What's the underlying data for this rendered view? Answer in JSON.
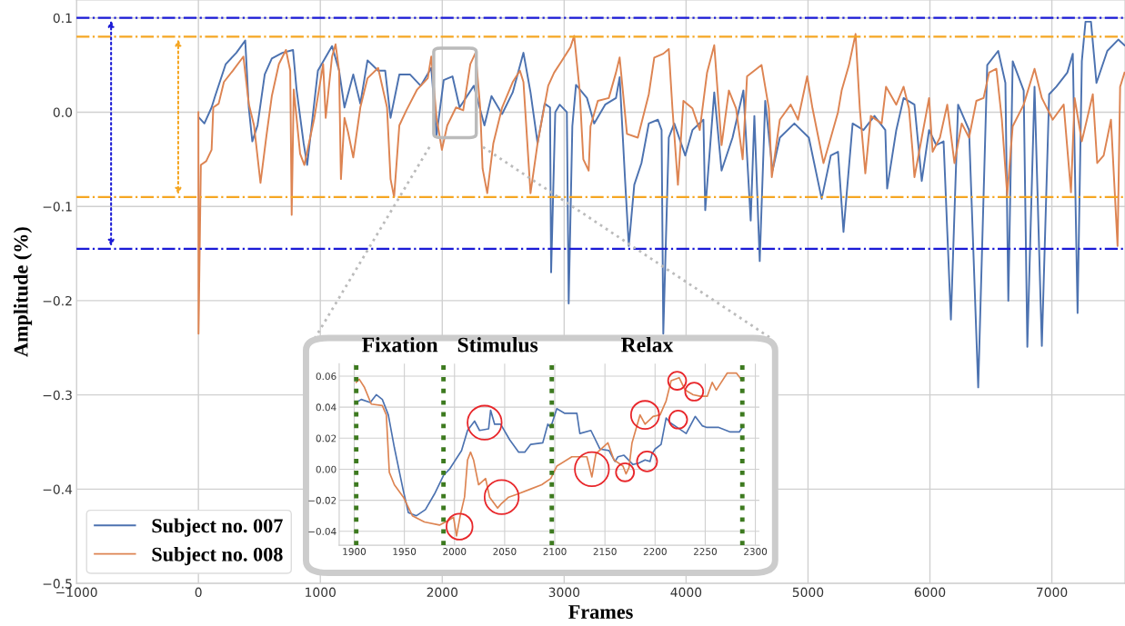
{
  "chart_data": [
    {
      "type": "line",
      "xlabel": "Frames",
      "ylabel": "Amplitude (%)",
      "xlim": [
        -1000,
        7600
      ],
      "ylim": [
        -0.5,
        0.119
      ],
      "xticks": [
        {
          "value": -1000,
          "label": "−1000"
        },
        0,
        1000,
        2000,
        3000,
        4000,
        5000,
        6000,
        7000
      ],
      "yticks": [
        {
          "value": -0.5,
          "label": "−0.5"
        },
        {
          "value": -0.4,
          "label": "−0.4"
        },
        {
          "value": -0.3,
          "label": "−0.3"
        },
        {
          "value": -0.2,
          "label": "−0.2"
        },
        {
          "value": -0.1,
          "label": "−0.1"
        },
        {
          "value": 0,
          "label": "0.0"
        },
        0.1
      ],
      "grid": true,
      "legend": "lower left",
      "line_style": "solid",
      "ref_lines": [
        {
          "axis": "y",
          "value": 0.1,
          "color": "#1a1ad6",
          "line_style": "dashdot"
        },
        {
          "axis": "y",
          "value": -0.145,
          "color": "#1a1ad6",
          "line_style": "dashdot"
        },
        {
          "axis": "y",
          "value": 0.08,
          "color": "#f5a623",
          "line_style": "dashdot"
        },
        {
          "axis": "y",
          "value": -0.09,
          "color": "#f5a623",
          "line_style": "dashdot"
        }
      ],
      "series": [
        {
          "name": "Subject no. 007",
          "color": "#4c72b0",
          "x": [
            6,
            49,
            108,
            137,
            224,
            311,
            384,
            413,
            442,
            485,
            544,
            602,
            689,
            776,
            805,
            863,
            892,
            980,
            1096,
            1154,
            1198,
            1270,
            1328,
            1387,
            1474,
            1532,
            1576,
            1648,
            1735,
            1823,
            1910,
            1953,
            2012,
            2084,
            2142,
            2259,
            2346,
            2404,
            2491,
            2578,
            2666,
            2724,
            2782,
            2840,
            2884,
            2893,
            2927,
            2963,
            3022,
            3037,
            3067,
            3097,
            3187,
            3246,
            3336,
            3425,
            3455,
            3500,
            3530,
            3575,
            3634,
            3694,
            3769,
            3799,
            3813,
            3858,
            3903,
            3993,
            4052,
            4142,
            4157,
            4231,
            4291,
            4381,
            4470,
            4530,
            4560,
            4604,
            4649,
            4709,
            4769,
            4888,
            5007,
            5112,
            5187,
            5246,
            5291,
            5366,
            5455,
            5545,
            5634,
            5649,
            5724,
            5784,
            5873,
            5933,
            5993,
            6052,
            6112,
            6172,
            6231,
            6321,
            6396,
            6470,
            6560,
            6619,
            6643,
            6679,
            6769,
            6799,
            6858,
            6918,
            6978,
            7037,
            7127,
            7172,
            7211,
            7246,
            7276,
            7321,
            7366,
            7455,
            7545,
            7596
          ],
          "values": [
            -0.006,
            -0.012,
            0.005,
            0.017,
            0.051,
            0.063,
            0.076,
            0.005,
            -0.031,
            -0.014,
            0.04,
            0.057,
            0.063,
            0.066,
            0.024,
            -0.033,
            -0.056,
            0.044,
            0.07,
            0.044,
            0.005,
            0.04,
            0.009,
            0.055,
            0.044,
            0.044,
            -0.006,
            0.04,
            0.04,
            0.028,
            0.047,
            -0.025,
            0.034,
            0.038,
            0.005,
            0.028,
            -0.014,
            0.017,
            -0.002,
            0.021,
            0.063,
            0.021,
            -0.033,
            0.009,
            0.005,
            -0.17,
            0.0,
            0.008,
            0.0,
            -0.203,
            -0.015,
            0.029,
            0.015,
            -0.012,
            0.008,
            0.015,
            0.037,
            -0.073,
            -0.142,
            -0.077,
            -0.054,
            -0.012,
            -0.008,
            -0.019,
            -0.235,
            -0.027,
            -0.012,
            -0.046,
            -0.019,
            -0.008,
            -0.104,
            0.021,
            -0.062,
            -0.027,
            0.023,
            -0.115,
            -0.004,
            -0.158,
            0.012,
            -0.062,
            -0.027,
            -0.012,
            -0.027,
            -0.092,
            -0.046,
            -0.042,
            -0.127,
            -0.012,
            -0.019,
            -0.004,
            -0.019,
            -0.081,
            -0.019,
            0.015,
            0.008,
            -0.073,
            -0.019,
            -0.035,
            -0.031,
            -0.22,
            0.008,
            -0.019,
            -0.292,
            0.05,
            0.065,
            0.031,
            -0.2,
            0.054,
            0.023,
            -0.249,
            0.027,
            -0.248,
            0.019,
            0.027,
            0.042,
            0.062,
            -0.213,
            0.054,
            0.096,
            0.096,
            0.031,
            0.065,
            0.077,
            0.071
          ]
        },
        {
          "name": "Subject no. 008",
          "color": "#dd8452",
          "x": [
            0,
            1,
            20,
            64,
            108,
            122,
            166,
            209,
            282,
            369,
            413,
            456,
            509,
            558,
            602,
            660,
            718,
            753,
            765,
            782,
            834,
            869,
            951,
            1023,
            1044,
            1096,
            1125,
            1154,
            1169,
            1198,
            1227,
            1270,
            1328,
            1387,
            1474,
            1547,
            1576,
            1605,
            1648,
            1706,
            1794,
            1881,
            1910,
            1953,
            1997,
            2041,
            2113,
            2172,
            2230,
            2273,
            2311,
            2331,
            2369,
            2419,
            2491,
            2578,
            2637,
            2666,
            2724,
            2782,
            2869,
            2918,
            2978,
            3052,
            3082,
            3127,
            3157,
            3201,
            3216,
            3276,
            3366,
            3425,
            3455,
            3515,
            3604,
            3694,
            3739,
            3813,
            3858,
            3888,
            3933,
            3978,
            4052,
            4112,
            4172,
            4231,
            4291,
            4351,
            4410,
            4464,
            4500,
            4619,
            4679,
            4703,
            4769,
            4858,
            4918,
            4993,
            5037,
            5127,
            5187,
            5246,
            5276,
            5336,
            5390,
            5425,
            5470,
            5515,
            5604,
            5640,
            5724,
            5784,
            5828,
            5858,
            5873,
            5933,
            5993,
            6022,
            6082,
            6142,
            6201,
            6261,
            6321,
            6381,
            6440,
            6485,
            6545,
            6590,
            6634,
            6679,
            6769,
            6858,
            6918,
            7007,
            7097,
            7157,
            7187,
            7246,
            7336,
            7372,
            7425,
            7485,
            7539,
            7560,
            7596
          ],
          "values": [
            0.0,
            -0.235,
            -0.056,
            -0.052,
            -0.04,
            0.005,
            0.009,
            0.032,
            0.044,
            0.059,
            0.009,
            -0.014,
            -0.075,
            -0.025,
            0.017,
            0.051,
            0.066,
            0.044,
            -0.109,
            0.024,
            -0.044,
            -0.056,
            -0.006,
            0.051,
            -0.006,
            0.059,
            0.072,
            0.044,
            -0.071,
            -0.006,
            -0.021,
            -0.048,
            0.005,
            0.036,
            0.047,
            0.005,
            -0.071,
            -0.09,
            -0.014,
            0.002,
            0.024,
            0.036,
            0.059,
            -0.006,
            -0.04,
            -0.014,
            0.005,
            0.002,
            0.051,
            0.063,
            0.005,
            -0.06,
            -0.086,
            -0.033,
            0.005,
            0.032,
            0.044,
            0.032,
            -0.086,
            -0.033,
            0.028,
            0.042,
            0.054,
            0.069,
            0.081,
            0.023,
            -0.05,
            -0.062,
            -0.015,
            0.012,
            0.015,
            0.042,
            0.058,
            -0.023,
            -0.027,
            0.019,
            0.058,
            0.062,
            0.067,
            0.004,
            -0.077,
            0.012,
            0.004,
            -0.019,
            0.042,
            0.071,
            -0.035,
            0.023,
            0.004,
            -0.05,
            0.038,
            0.05,
            0.004,
            -0.069,
            -0.008,
            0.008,
            -0.008,
            0.038,
            0.004,
            -0.054,
            -0.027,
            0.0,
            0.023,
            0.05,
            0.083,
            0.004,
            -0.065,
            -0.004,
            -0.012,
            0.027,
            0.008,
            0.027,
            0.004,
            -0.042,
            -0.069,
            -0.027,
            0.015,
            -0.042,
            -0.027,
            0.008,
            -0.054,
            -0.012,
            -0.027,
            0.012,
            0.015,
            0.042,
            0.046,
            -0.008,
            -0.088,
            -0.015,
            0.008,
            0.046,
            0.015,
            -0.008,
            0.008,
            -0.085,
            0.015,
            -0.031,
            0.019,
            -0.054,
            -0.046,
            -0.008,
            -0.142,
            0.027,
            0.042
          ]
        }
      ]
    },
    {
      "type": "line",
      "xlim": [
        1885,
        2304
      ],
      "ylim": [
        -0.049,
        0.068
      ],
      "xticks": [
        1900,
        1950,
        2000,
        2050,
        2100,
        2150,
        2200,
        2250,
        2300
      ],
      "yticks": [
        {
          "value": -0.04,
          "label": "−0.04"
        },
        {
          "value": -0.02,
          "label": "−0.02"
        },
        {
          "value": 0,
          "label": "0.00"
        },
        {
          "value": 0.02,
          "label": "0.02"
        },
        {
          "value": 0.04,
          "label": "0.04"
        },
        {
          "value": 0.06,
          "label": "0.06"
        }
      ],
      "grid": true,
      "line_style": "solid",
      "annotations": [
        "Fixation",
        "Stimulus",
        "Relax"
      ],
      "ref_lines": [
        {
          "axis": "x",
          "value": 1902,
          "color": "#3d7a1f",
          "line_style": "dotted"
        },
        {
          "axis": "x",
          "value": 1989,
          "color": "#3d7a1f",
          "line_style": "dotted"
        },
        {
          "axis": "x",
          "value": 2097,
          "color": "#3d7a1f",
          "line_style": "dotted"
        },
        {
          "axis": "x",
          "value": 2287,
          "color": "#3d7a1f",
          "line_style": "dotted"
        }
      ],
      "series": [
        {
          "color": "#4c72b0",
          "x": [
            1902,
            1907,
            1916,
            1922,
            1928,
            1934,
            1940,
            1949,
            1954,
            1962,
            1971,
            1980,
            1989,
            1995,
            2007,
            2013,
            2020,
            2025,
            2034,
            2036,
            2040,
            2046,
            2055,
            2064,
            2070,
            2076,
            2088,
            2093,
            2096,
            2102,
            2110,
            2122,
            2125,
            2136,
            2145,
            2154,
            2160,
            2163,
            2169,
            2178,
            2184,
            2190,
            2195,
            2197,
            2200,
            2206,
            2211,
            2215,
            2222,
            2231,
            2240,
            2247,
            2251,
            2263,
            2275,
            2284,
            2287
          ],
          "values": [
            0.043,
            0.045,
            0.043,
            0.048,
            0.045,
            0.035,
            0.014,
            -0.014,
            -0.028,
            -0.03,
            -0.026,
            -0.016,
            -0.004,
            0.0,
            0.012,
            0.025,
            0.031,
            0.025,
            0.026,
            0.038,
            0.029,
            0.029,
            0.019,
            0.011,
            0.011,
            0.016,
            0.017,
            0.029,
            0.027,
            0.039,
            0.036,
            0.036,
            0.023,
            0.025,
            0.013,
            0.012,
            0.005,
            0.008,
            0.009,
            0.003,
            0.004,
            0.006,
            0.005,
            0.01,
            0.013,
            0.016,
            0.033,
            0.03,
            0.027,
            0.023,
            0.034,
            0.028,
            0.027,
            0.027,
            0.024,
            0.024,
            0.027
          ]
        },
        {
          "color": "#dd8452",
          "x": [
            1902,
            1905,
            1910,
            1917,
            1928,
            1932,
            1935,
            1940,
            1949,
            1958,
            1970,
            1985,
            1994,
            1999,
            2002,
            2006,
            2010,
            2013,
            2016,
            2019,
            2024,
            2031,
            2035,
            2043,
            2047,
            2054,
            2063,
            2075,
            2087,
            2096,
            2102,
            2117,
            2132,
            2137,
            2141,
            2153,
            2159,
            2168,
            2171,
            2174,
            2177,
            2185,
            2190,
            2198,
            2205,
            2211,
            2216,
            2224,
            2230,
            2238,
            2245,
            2252,
            2257,
            2261,
            2272,
            2281,
            2287
          ],
          "values": [
            0.056,
            0.058,
            0.053,
            0.042,
            0.041,
            0.035,
            -0.002,
            -0.01,
            -0.018,
            -0.03,
            -0.034,
            -0.036,
            -0.033,
            -0.031,
            -0.043,
            -0.029,
            -0.018,
            0.006,
            0.011,
            0.006,
            -0.01,
            -0.006,
            -0.018,
            -0.025,
            -0.022,
            -0.018,
            -0.016,
            -0.013,
            -0.01,
            -0.006,
            0.002,
            0.008,
            0.008,
            -0.005,
            0.01,
            0.017,
            0.006,
            0.002,
            -0.003,
            0.001,
            0.017,
            0.035,
            0.029,
            0.034,
            0.035,
            0.044,
            0.057,
            0.059,
            0.051,
            0.048,
            0.047,
            0.047,
            0.056,
            0.051,
            0.062,
            0.062,
            0.057
          ]
        }
      ]
    }
  ]
}
